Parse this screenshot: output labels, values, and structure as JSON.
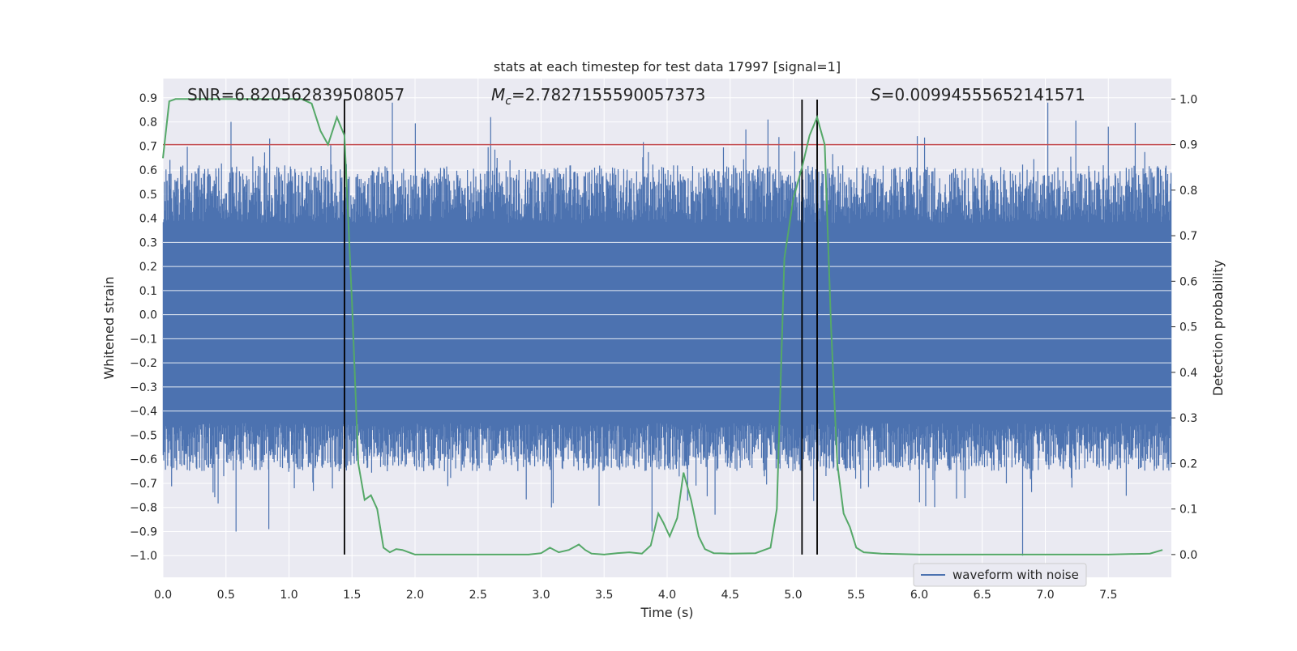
{
  "chart_data": {
    "type": "line",
    "title": "stats at each timestep for test data 17997 [signal=1]",
    "xlabel": "Time (s)",
    "ylabel_left": "Whitened strain",
    "ylabel_right": "Detection probability",
    "xlim": [
      0.0,
      8.0
    ],
    "ylim_left": [
      -1.09,
      0.98
    ],
    "ylim_right": [
      -0.05,
      1.045
    ],
    "x_ticks": [
      "0.0",
      "0.5",
      "1.0",
      "1.5",
      "2.0",
      "2.5",
      "3.0",
      "3.5",
      "4.0",
      "4.5",
      "5.0",
      "5.5",
      "6.0",
      "6.5",
      "7.0",
      "7.5"
    ],
    "y_ticks_left": [
      "0.9",
      "0.8",
      "0.7",
      "0.6",
      "0.5",
      "0.4",
      "0.3",
      "0.2",
      "0.1",
      "0.0",
      "−0.1",
      "−0.2",
      "−0.3",
      "−0.4",
      "−0.5",
      "−0.6",
      "−0.7",
      "−0.8",
      "−0.9",
      "−1.0"
    ],
    "y_ticks_right": [
      "1.0",
      "0.9",
      "0.8",
      "0.7",
      "0.6",
      "0.5",
      "0.4",
      "0.3",
      "0.2",
      "0.1",
      "0.0"
    ],
    "annotations": {
      "snr": "SNR=6.820562839508057",
      "mc_symbol": "M",
      "mc_sub": "c",
      "mc_value": "=2.7827155590057373",
      "s_symbol": "S",
      "s_value": "=0.00994555652141571"
    },
    "legend": {
      "position": "lower-right",
      "entries": [
        "waveform with noise"
      ]
    },
    "colors": {
      "waveform": "#4c72b0",
      "probability": "#55a868",
      "threshold": "#c44e52",
      "markers": "#000000",
      "background": "#eaeaf2",
      "grid": "#ffffff"
    },
    "waveform": {
      "name": "waveform with noise",
      "core_band": [
        -0.43,
        0.32
      ],
      "upper_envelope_typical": [
        0.38,
        0.62
      ],
      "lower_envelope_typical": [
        -0.65,
        -0.45
      ],
      "max_peaks": [
        [
          1.82,
          0.88
        ],
        [
          7.02,
          0.88
        ],
        [
          2.6,
          0.82
        ],
        [
          4.8,
          0.81
        ],
        [
          7.5,
          0.78
        ]
      ],
      "min_peaks": [
        [
          6.82,
          -1.0
        ],
        [
          0.58,
          -0.9
        ],
        [
          0.84,
          -0.89
        ],
        [
          3.88,
          -0.9
        ],
        [
          4.38,
          -0.83
        ]
      ]
    },
    "threshold": {
      "axis": "right",
      "value": 0.9
    },
    "markers_x": [
      1.44,
      5.07,
      5.19
    ],
    "probability": {
      "name": "detection probability",
      "axis": "right",
      "x": [
        0.0,
        0.05,
        0.1,
        0.2,
        0.4,
        0.6,
        0.8,
        1.0,
        1.1,
        1.18,
        1.25,
        1.31,
        1.38,
        1.44,
        1.5,
        1.55,
        1.6,
        1.65,
        1.7,
        1.75,
        1.8,
        1.85,
        1.9,
        1.95,
        2.0,
        2.2,
        2.5,
        2.8,
        2.9,
        3.0,
        3.07,
        3.14,
        3.22,
        3.3,
        3.35,
        3.4,
        3.5,
        3.6,
        3.7,
        3.8,
        3.87,
        3.93,
        3.97,
        4.02,
        4.08,
        4.13,
        4.19,
        4.25,
        4.3,
        4.37,
        4.5,
        4.7,
        4.82,
        4.87,
        4.93,
        5.0,
        5.07,
        5.13,
        5.19,
        5.25,
        5.3,
        5.35,
        5.4,
        5.45,
        5.5,
        5.56,
        5.7,
        6.0,
        6.5,
        7.0,
        7.5,
        7.83,
        7.93
      ],
      "y": [
        0.87,
        0.995,
        1.0,
        1.0,
        1.0,
        1.0,
        1.0,
        1.0,
        1.0,
        0.99,
        0.93,
        0.9,
        0.96,
        0.92,
        0.55,
        0.2,
        0.12,
        0.13,
        0.1,
        0.015,
        0.005,
        0.012,
        0.01,
        0.005,
        0.0,
        0.0,
        0.0,
        0.0,
        0.0,
        0.003,
        0.015,
        0.005,
        0.01,
        0.022,
        0.01,
        0.002,
        0.0,
        0.003,
        0.005,
        0.002,
        0.02,
        0.09,
        0.07,
        0.04,
        0.08,
        0.18,
        0.12,
        0.04,
        0.012,
        0.003,
        0.002,
        0.003,
        0.015,
        0.1,
        0.65,
        0.78,
        0.85,
        0.92,
        0.96,
        0.9,
        0.5,
        0.2,
        0.09,
        0.06,
        0.015,
        0.005,
        0.002,
        0.0,
        0.0,
        0.0,
        0.0,
        0.002,
        0.01
      ]
    }
  }
}
